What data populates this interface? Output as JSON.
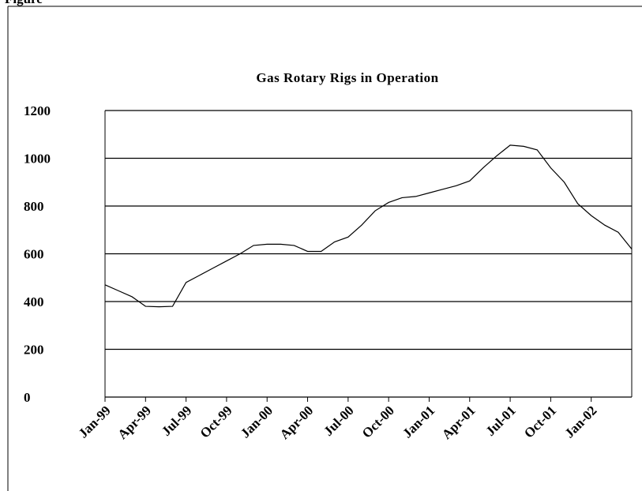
{
  "caption": "Figure",
  "chart_data": {
    "type": "line",
    "title": "Gas Rotary Rigs in Operation",
    "categories": [
      "Jan-99",
      null,
      null,
      "Apr-99",
      null,
      null,
      "Jul-99",
      null,
      null,
      "Oct-99",
      null,
      null,
      "Jan-00",
      null,
      null,
      "Apr-00",
      null,
      null,
      "Jul-00",
      null,
      null,
      "Oct-00",
      null,
      null,
      "Jan-01",
      null,
      null,
      "Apr-01",
      null,
      null,
      "Jul-01",
      null,
      null,
      "Oct-01",
      null,
      null,
      "Jan-02",
      null,
      null,
      null
    ],
    "series": [
      {
        "name": "Gas Rotary Rigs",
        "color": "#000000",
        "values": [
          470,
          445,
          420,
          380,
          378,
          380,
          480,
          510,
          540,
          570,
          600,
          635,
          640,
          640,
          635,
          610,
          610,
          650,
          670,
          720,
          780,
          815,
          835,
          840,
          855,
          870,
          885,
          905,
          960,
          1010,
          1055,
          1050,
          1035,
          960,
          900,
          810,
          760,
          720,
          690,
          620
        ]
      }
    ],
    "ylim": [
      0,
      1200
    ],
    "yticks": [
      0,
      200,
      400,
      600,
      800,
      1000,
      1200
    ],
    "grid": true
  }
}
